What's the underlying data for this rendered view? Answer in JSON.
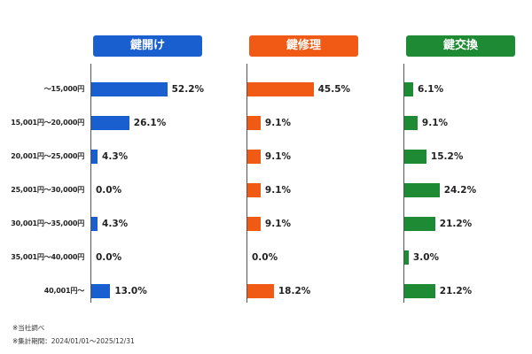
{
  "chart_data": [
    {
      "type": "bar",
      "orientation": "horizontal",
      "title": "鍵開け",
      "color": "#1a5fcf",
      "categories": [
        "〜15,000円",
        "15,001円〜20,000円",
        "20,001円〜25,000円",
        "25,001円〜30,000円",
        "30,001円〜35,000円",
        "35,001円〜40,000円",
        "40,001円〜"
      ],
      "values": [
        52.2,
        26.1,
        4.3,
        0.0,
        4.3,
        0.0,
        13.0
      ],
      "labels": [
        "52.2%",
        "26.1%",
        "4.3%",
        "0.0%",
        "4.3%",
        "0.0%",
        "13.0%"
      ],
      "xlim": [
        0,
        100
      ]
    },
    {
      "type": "bar",
      "orientation": "horizontal",
      "title": "鍵修理",
      "color": "#f05a14",
      "categories": [
        "〜15,000円",
        "15,001円〜20,000円",
        "20,001円〜25,000円",
        "25,001円〜30,000円",
        "30,001円〜35,000円",
        "35,001円〜40,000円",
        "40,001円〜"
      ],
      "values": [
        45.5,
        9.1,
        9.1,
        9.1,
        9.1,
        0.0,
        18.2
      ],
      "labels": [
        "45.5%",
        "9.1%",
        "9.1%",
        "9.1%",
        "9.1%",
        "0.0%",
        "18.2%"
      ],
      "xlim": [
        0,
        100
      ]
    },
    {
      "type": "bar",
      "orientation": "horizontal",
      "title": "鍵交換",
      "color": "#1e8a34",
      "categories": [
        "〜15,000円",
        "15,001円〜20,000円",
        "20,001円〜25,000円",
        "25,001円〜30,000円",
        "30,001円〜35,000円",
        "35,001円〜40,000円",
        "40,001円〜"
      ],
      "values": [
        6.1,
        9.1,
        15.2,
        24.2,
        21.2,
        3.0,
        21.2
      ],
      "labels": [
        "6.1%",
        "9.1%",
        "15.2%",
        "24.2%",
        "21.2%",
        "3.0%",
        "21.2%"
      ],
      "xlim": [
        0,
        100
      ]
    }
  ],
  "notes": [
    "※当社調べ",
    "※集計期間：2024/01/01〜2025/12/31"
  ]
}
